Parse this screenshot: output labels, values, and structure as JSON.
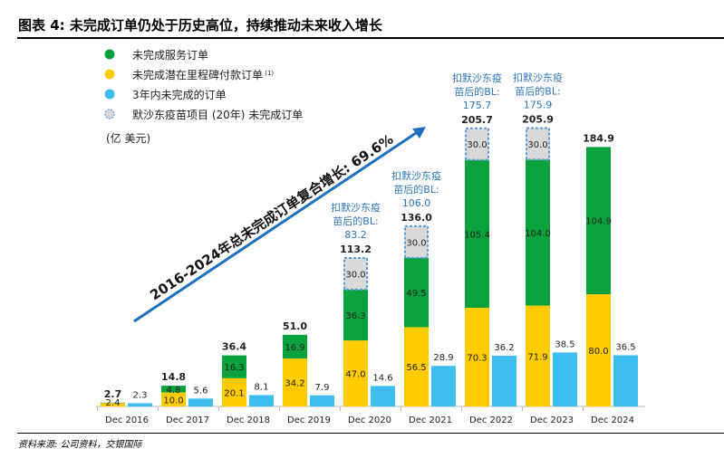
{
  "title": "图表 4: 未完成订单仍处于历史高位，持续推动未来收入增长",
  "source": "资料来源: 公司资料，交银国际",
  "chart_data": {
    "type": "bar",
    "unit_label": "(亿  美元)",
    "categories": [
      "Dec 2016",
      "Dec 2017",
      "Dec 2018",
      "Dec 2019",
      "Dec 2020",
      "Dec 2021",
      "Dec 2022",
      "Dec 2023",
      "Dec 2024"
    ],
    "series": [
      {
        "name": "未完成服务订单",
        "color": "#0AA23C",
        "values": [
          0.3,
          4.8,
          16.3,
          16.9,
          36.3,
          49.5,
          105.4,
          104.0,
          104.9
        ],
        "labels": [
          null,
          "4.8",
          "16.3",
          "16.9",
          "36.3",
          "49.5",
          "105.4",
          "104.0",
          "104.9"
        ]
      },
      {
        "name": "未完成潜在里程碑付款订单",
        "superscript": "(1)",
        "color": "#FFCC00",
        "values": [
          2.4,
          10.0,
          20.1,
          34.2,
          47.0,
          56.5,
          70.3,
          71.9,
          80.0
        ]
      },
      {
        "name": "3年内未完成的订单",
        "color": "#3EBEEE",
        "values": [
          2.3,
          5.6,
          8.1,
          7.9,
          14.6,
          28.9,
          36.2,
          38.5,
          36.5
        ]
      },
      {
        "name": "默沙东疫苗项目 (20年) 未完成订单",
        "color": "#D9D9D9",
        "values": [
          null,
          null,
          null,
          null,
          30.0,
          30.0,
          30.0,
          30.0,
          null
        ]
      }
    ],
    "totals": [
      "2.7",
      "14.8",
      "36.4",
      "51.0",
      "113.2",
      "136.0",
      "205.7",
      "205.9",
      "184.9"
    ],
    "ex_vaccine_label": "扣默沙东疫苗后的BL:",
    "ex_vaccine": [
      null,
      null,
      null,
      null,
      "83.2",
      "106.0",
      "175.7",
      "175.9",
      null
    ],
    "annotation": "2016-2024年总未完成订单复合增长: 69.6%",
    "legend_position": "top-left",
    "grid": false
  }
}
